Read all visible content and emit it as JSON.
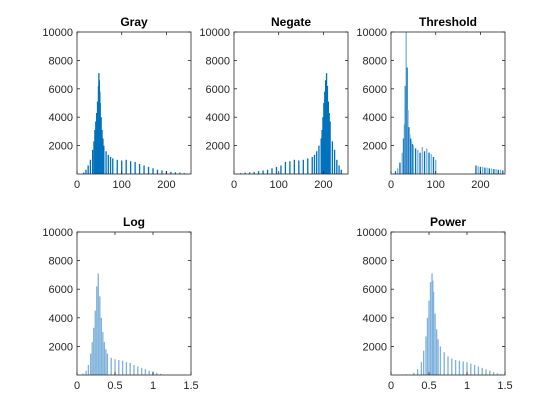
{
  "colors": {
    "dark_bar": "#0072BD",
    "light_bar": "#7FB2DC"
  },
  "chart_data": [
    {
      "type": "bar",
      "title": "Gray",
      "xlim": [
        0,
        255
      ],
      "ylim": [
        0,
        10000
      ],
      "xticks": [
        "0",
        "100",
        "200"
      ],
      "yticks": [
        "2000",
        "4000",
        "6000",
        "8000",
        "10000"
      ],
      "tone": "dark",
      "x": [
        10,
        15,
        20,
        25,
        30,
        35,
        38,
        40,
        42,
        44,
        46,
        48,
        49,
        50,
        51,
        52,
        54,
        56,
        58,
        60,
        65,
        70,
        75,
        80,
        90,
        100,
        110,
        120,
        130,
        140,
        150,
        160,
        170,
        180,
        190,
        200,
        210,
        220,
        230,
        240,
        248
      ],
      "values": [
        0,
        100,
        300,
        600,
        1000,
        1700,
        2300,
        3100,
        3700,
        4300,
        5100,
        6200,
        7100,
        6600,
        5800,
        5000,
        4000,
        3100,
        2500,
        2000,
        1600,
        1350,
        1200,
        1100,
        1000,
        950,
        1000,
        900,
        850,
        700,
        600,
        500,
        400,
        300,
        250,
        200,
        150,
        120,
        100,
        60,
        0
      ]
    },
    {
      "type": "bar",
      "title": "Negate",
      "xlim": [
        0,
        255
      ],
      "ylim": [
        0,
        10000
      ],
      "xticks": [
        "0",
        "100",
        "200"
      ],
      "yticks": [
        "2000",
        "4000",
        "6000",
        "8000",
        "10000"
      ],
      "tone": "dark",
      "x": [
        7,
        15,
        25,
        35,
        45,
        55,
        65,
        75,
        85,
        95,
        105,
        115,
        125,
        135,
        145,
        155,
        165,
        175,
        180,
        185,
        190,
        195,
        197,
        199,
        201,
        203,
        205,
        207,
        209,
        211,
        213,
        215,
        220,
        225,
        230,
        235,
        240,
        245
      ],
      "values": [
        0,
        60,
        100,
        120,
        150,
        200,
        250,
        300,
        400,
        500,
        600,
        850,
        900,
        1000,
        950,
        1000,
        1100,
        1200,
        1350,
        1600,
        2000,
        2500,
        3100,
        4000,
        5000,
        5800,
        6600,
        7100,
        6200,
        5100,
        4300,
        3700,
        2300,
        1700,
        1000,
        600,
        300,
        0
      ]
    },
    {
      "type": "bar",
      "title": "Threshold",
      "xlim": [
        0,
        255
      ],
      "ylim": [
        0,
        10000
      ],
      "xticks": [
        "0",
        "100",
        "200"
      ],
      "yticks": [
        "2000",
        "4000",
        "6000",
        "8000",
        "10000"
      ],
      "tone": "mixed",
      "x": [
        10,
        15,
        20,
        25,
        28,
        30,
        32,
        34,
        36,
        38,
        40,
        42,
        44,
        46,
        48,
        50,
        55,
        60,
        65,
        70,
        75,
        80,
        85,
        90,
        95,
        100,
        190,
        195,
        200,
        205,
        210,
        215,
        220,
        225,
        230,
        235,
        240,
        245,
        250
      ],
      "values": [
        200,
        400,
        800,
        1500,
        2500,
        3500,
        6200,
        10000,
        7500,
        4500,
        3300,
        2800,
        2500,
        2300,
        2100,
        2000,
        1800,
        1700,
        1500,
        1900,
        1600,
        1800,
        1500,
        1400,
        1200,
        1000,
        600,
        550,
        500,
        500,
        450,
        450,
        400,
        400,
        350,
        350,
        300,
        300,
        250
      ]
    },
    {
      "type": "bar",
      "title": "Log",
      "xlim": [
        0,
        1.5
      ],
      "ylim": [
        0,
        10000
      ],
      "xticks": [
        "0",
        "0.5",
        "1",
        "1.5"
      ],
      "yticks": [
        "2000",
        "4000",
        "6000",
        "8000",
        "10000"
      ],
      "tone": "light",
      "x": [
        0.05,
        0.08,
        0.12,
        0.15,
        0.18,
        0.2,
        0.22,
        0.24,
        0.26,
        0.28,
        0.3,
        0.32,
        0.34,
        0.36,
        0.38,
        0.4,
        0.45,
        0.5,
        0.55,
        0.6,
        0.65,
        0.7,
        0.75,
        0.8,
        0.85,
        0.9,
        0.95,
        1.0,
        1.05,
        1.1
      ],
      "values": [
        0,
        100,
        300,
        700,
        1500,
        2300,
        3300,
        4500,
        6200,
        7100,
        5500,
        4000,
        3000,
        2300,
        1800,
        1500,
        1200,
        1100,
        1050,
        1000,
        900,
        850,
        700,
        600,
        500,
        400,
        300,
        250,
        150,
        80
      ]
    },
    {
      "type": "bar",
      "title": "Power",
      "xlim": [
        0,
        1.5
      ],
      "ylim": [
        0,
        10000
      ],
      "xticks": [
        "0",
        "0.5",
        "1",
        "1.5"
      ],
      "yticks": [
        "2000",
        "4000",
        "6000",
        "8000",
        "10000"
      ],
      "tone": "light",
      "x": [
        0.2,
        0.3,
        0.35,
        0.4,
        0.43,
        0.46,
        0.48,
        0.5,
        0.52,
        0.54,
        0.55,
        0.56,
        0.58,
        0.6,
        0.62,
        0.65,
        0.7,
        0.75,
        0.8,
        0.85,
        0.9,
        0.95,
        1.0,
        1.05,
        1.1,
        1.15,
        1.2,
        1.25,
        1.3,
        1.35,
        1.4,
        1.45
      ],
      "values": [
        50,
        150,
        400,
        900,
        1700,
        2700,
        4000,
        5200,
        6500,
        7100,
        6600,
        5800,
        4300,
        3200,
        2500,
        2000,
        1600,
        1300,
        1150,
        1050,
        1000,
        950,
        900,
        800,
        700,
        600,
        500,
        400,
        300,
        200,
        120,
        60
      ]
    }
  ]
}
